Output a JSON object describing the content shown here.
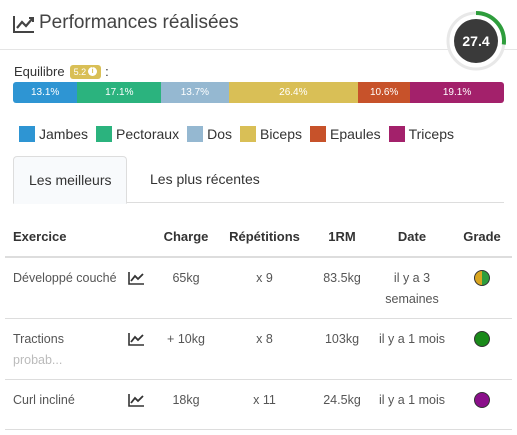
{
  "header": {
    "title": "Performances réalisées",
    "icon": "line-chart-icon",
    "score": "27.4",
    "score_fraction": 0.27,
    "score_ring_color": "#2e9d3c",
    "score_bg_color": "#3a3a3a"
  },
  "equilibre": {
    "label": "Equilibre",
    "badge": "5.2",
    "badge_color": "#d9bf56",
    "colon": ":",
    "segments": [
      {
        "label": "13.1%",
        "value": 13.1,
        "color": "#2e95d3"
      },
      {
        "label": "17.1%",
        "value": 17.1,
        "color": "#2bb37e"
      },
      {
        "label": "13.7%",
        "value": 13.7,
        "color": "#95b8d1"
      },
      {
        "label": "26.4%",
        "value": 26.4,
        "color": "#d9bf56"
      },
      {
        "label": "10.6%",
        "value": 10.6,
        "color": "#c7522a"
      },
      {
        "label": "19.1%",
        "value": 19.1,
        "color": "#a3216b"
      }
    ]
  },
  "legend": [
    {
      "label": "Jambes",
      "color": "#2e95d3"
    },
    {
      "label": "Pectoraux",
      "color": "#2bb37e"
    },
    {
      "label": "Dos",
      "color": "#95b8d1"
    },
    {
      "label": "Biceps",
      "color": "#d9bf56"
    },
    {
      "label": "Epaules",
      "color": "#c7522a"
    },
    {
      "label": "Triceps",
      "color": "#a3216b"
    }
  ],
  "tabs": {
    "best": "Les meilleurs",
    "recent": "Les plus récentes"
  },
  "table": {
    "headers": {
      "exercise": "Exercice",
      "charge": "Charge",
      "reps": "Répétitions",
      "rm": "1RM",
      "date": "Date",
      "grade": "Grade"
    },
    "rows": [
      {
        "exercise": "Développé couché",
        "charge": "65kg",
        "reps": "x 9",
        "rm": "83.5kg",
        "date": "il y a 3 semaines",
        "grade_colors": [
          "#d9a520",
          "#2e9d3c"
        ]
      },
      {
        "exercise": "Tractions",
        "exercise_faded": "probab...",
        "charge": "+ 10kg",
        "reps": "x 8",
        "rm": "103kg",
        "date": "il y a 1 mois",
        "grade_colors": [
          "#1a8a1a"
        ]
      },
      {
        "exercise": "Curl incliné",
        "charge": "18kg",
        "reps": "x 11",
        "rm": "24.5kg",
        "date": "il y a 1 mois",
        "grade_colors": [
          "#8a0f8a"
        ]
      }
    ]
  }
}
